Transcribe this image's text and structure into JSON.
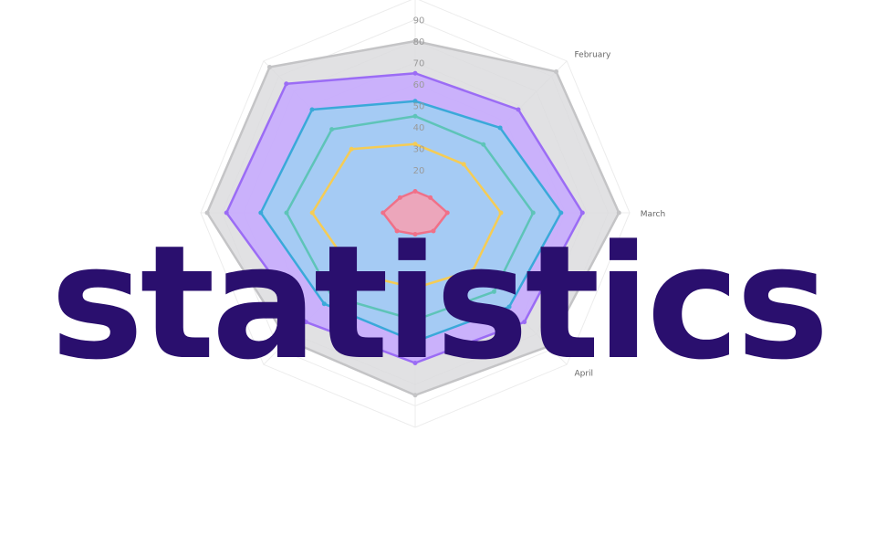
{
  "chart_data": {
    "type": "radar",
    "title": "",
    "axes": [
      "",
      "February",
      "March",
      "April",
      "",
      "",
      "",
      ""
    ],
    "tick_labels": [
      "20",
      "30",
      "40",
      "50",
      "60",
      "70",
      "80",
      "90"
    ],
    "r_min": 0,
    "r_max": 100,
    "grid": true,
    "series": [
      {
        "fill": "#dcdcde",
        "stroke": "#c4c4c6",
        "values": [
          80,
          93,
          95,
          88,
          85,
          84,
          97,
          96
        ]
      },
      {
        "fill": "#c6a8ff",
        "stroke": "#9b6cf5",
        "values": [
          65,
          68,
          78,
          72,
          70,
          72,
          88,
          85
        ]
      },
      {
        "fill": "#9fd0f2",
        "stroke": "#3aa9d9",
        "values": [
          52,
          56,
          68,
          62,
          60,
          60,
          72,
          68
        ]
      },
      {
        "fill": "none",
        "stroke": "#5ec4b8",
        "values": [
          45,
          45,
          55,
          52,
          50,
          55,
          60,
          55
        ]
      },
      {
        "fill": "none",
        "stroke": "#f5cc55",
        "values": [
          32,
          32,
          40,
          38,
          35,
          40,
          48,
          42
        ]
      },
      {
        "fill": "#f8a0b0",
        "stroke": "#f07088",
        "values": [
          10,
          10,
          15,
          12,
          10,
          12,
          15,
          10
        ]
      }
    ]
  },
  "headline": {
    "text": "statistics",
    "color": "#2a0f6e"
  }
}
